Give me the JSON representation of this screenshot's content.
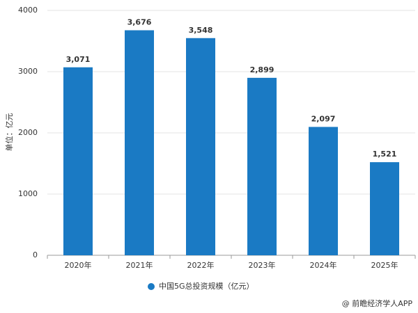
{
  "chart_data": {
    "type": "bar",
    "y_label": "单位：亿元",
    "categories": [
      "2020年",
      "2021年",
      "2022年",
      "2023年",
      "2024年",
      "2025年"
    ],
    "series": [
      {
        "name": "中国5G总投资规模（亿元）",
        "color": "#1a7ac4",
        "values": [
          3071,
          3676,
          3548,
          2899,
          2097,
          1521
        ],
        "value_labels": [
          "3,071",
          "3,676",
          "3,548",
          "2,899",
          "2,097",
          "1,521"
        ]
      }
    ],
    "ylim": [
      0,
      4000
    ],
    "yticks": [
      0,
      1000,
      2000,
      3000,
      4000
    ],
    "grid": true,
    "source": "@ 前瞻经济学人APP"
  }
}
